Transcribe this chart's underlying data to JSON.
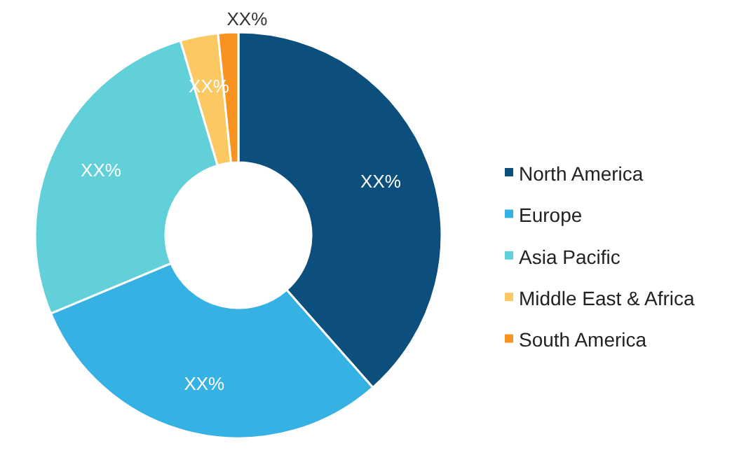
{
  "chart_data": {
    "type": "donut",
    "categories": [
      "North America",
      "Europe",
      "Asia Pacific",
      "Middle East & Africa",
      "South America"
    ],
    "values": [
      38.5,
      30.2,
      26.7,
      3.0,
      1.6
    ],
    "colors": [
      "#0c4f7c",
      "#36b1e4",
      "#62d0d8",
      "#fcc862",
      "#f7931e"
    ],
    "value_labels": [
      "XX%",
      "XX%",
      "XX%",
      "XX%",
      "XX%"
    ],
    "legend": "right"
  }
}
